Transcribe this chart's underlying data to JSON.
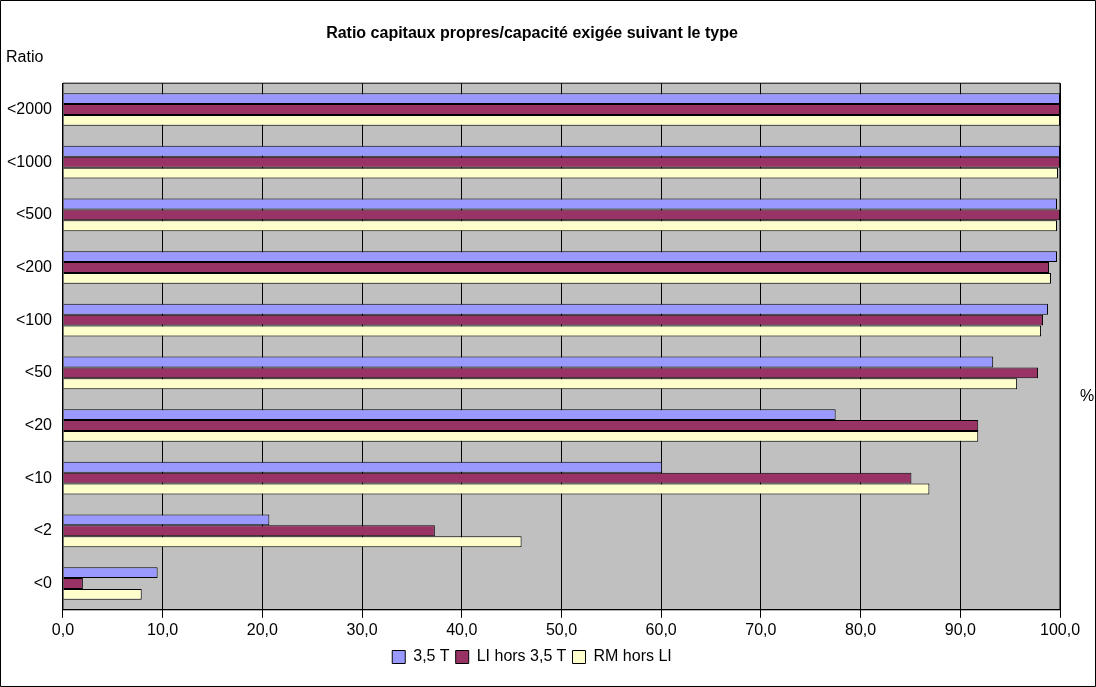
{
  "chart_data": {
    "type": "bar",
    "orientation": "horizontal",
    "title": "Ratio capitaux propres/capacité exigée suivant le type",
    "ylabel": "Ratio",
    "xlabel": "%",
    "categories": [
      "<2000",
      "<1000",
      "<500",
      "<200",
      "<100",
      "<50",
      "<20",
      "<10",
      "<2",
      "<0"
    ],
    "series": [
      {
        "name": "3,5 T",
        "color": "#9999ff",
        "values": [
          100,
          100,
          99.7,
          99.7,
          98.8,
          93.3,
          77.5,
          60.1,
          20.7,
          9.5
        ]
      },
      {
        "name": "LI hors 3,5 T",
        "color": "#993366",
        "values": [
          100,
          100,
          100,
          98.9,
          98.3,
          97.8,
          91.8,
          85.1,
          37.3,
          2.0
        ]
      },
      {
        "name": "RM hors LI",
        "color": "#ffffcc",
        "values": [
          100,
          99.8,
          99.7,
          99.1,
          98.1,
          95.7,
          91.8,
          86.9,
          46.0,
          7.9
        ]
      }
    ],
    "xlim": [
      0,
      100
    ],
    "xticks": [
      {
        "value": 0,
        "label": "0,0"
      },
      {
        "value": 10,
        "label": "10,0"
      },
      {
        "value": 20,
        "label": "20,0"
      },
      {
        "value": 30,
        "label": "30,0"
      },
      {
        "value": 40,
        "label": "40,0"
      },
      {
        "value": 50,
        "label": "50,0"
      },
      {
        "value": 60,
        "label": "60,0"
      },
      {
        "value": 70,
        "label": "70,0"
      },
      {
        "value": 80,
        "label": "80,0"
      },
      {
        "value": 90,
        "label": "90,0"
      },
      {
        "value": 100,
        "label": "100,0"
      }
    ],
    "grid": "x",
    "legend": "bottom"
  }
}
